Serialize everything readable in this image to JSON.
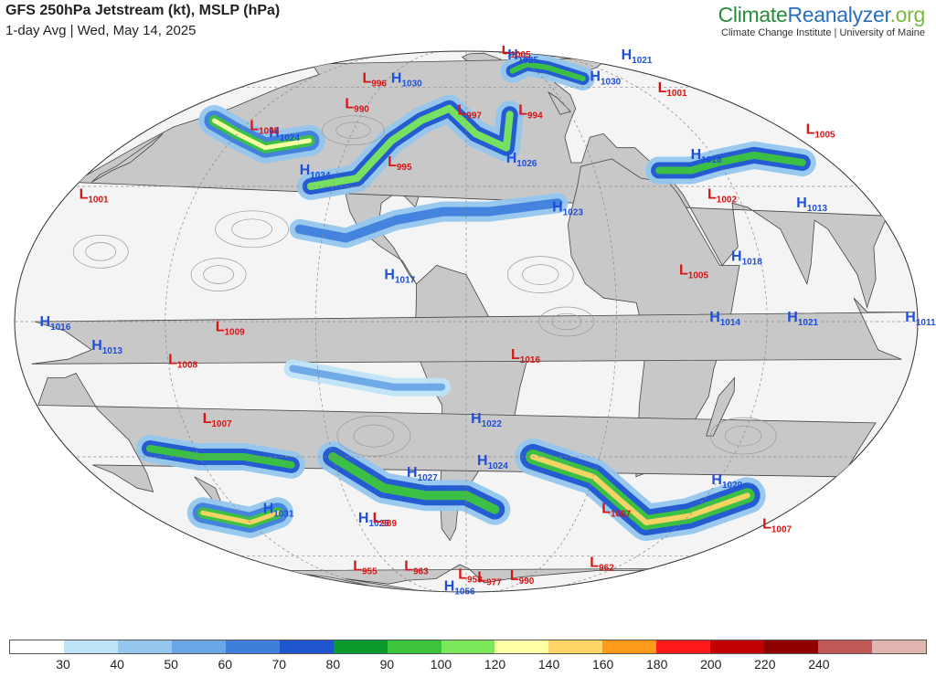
{
  "header": {
    "title": "GFS 250hPa Jetstream (kt), MSLP (hPa)",
    "subtitle": "1-day Avg | Wed, May 14, 2025"
  },
  "brand": {
    "name_part1": "Climate",
    "name_part2": "Reanalyzer",
    "name_part3": ".org",
    "tagline": "Climate Change Institute | University of Maine"
  },
  "colors": {
    "high": "#1f4fd6",
    "low": "#d81414",
    "neutral": "#2a8a7a",
    "land": "#c8c8c8",
    "ocean": "#f4f4f4"
  },
  "colorbar": {
    "colors": [
      "#ffffff",
      "#bfe3f7",
      "#94c6ee",
      "#6aa6e6",
      "#3f7fdc",
      "#1f56cf",
      "#0a9a2c",
      "#3cc43c",
      "#7ae85a",
      "#ffffa8",
      "#ffd466",
      "#ff9a1a",
      "#ff1a1a",
      "#c00000",
      "#8e0000",
      "#c05858",
      "#e0b4b0"
    ],
    "ticks": [
      "30",
      "40",
      "50",
      "60",
      "70",
      "80",
      "90",
      "100",
      "120",
      "140",
      "160",
      "180",
      "200",
      "220",
      "240"
    ]
  },
  "pressure_systems": [
    {
      "type": "H",
      "value": "1025",
      "lon": -12,
      "lat": 76
    },
    {
      "type": "H",
      "value": "1021",
      "lon": 120,
      "lat": 76
    },
    {
      "type": "H",
      "value": "1030",
      "lon": -115,
      "lat": 62
    },
    {
      "type": "H",
      "value": "1030",
      "lon": 33,
      "lat": 63
    },
    {
      "type": "H",
      "value": "1024",
      "lon": -162,
      "lat": 43
    },
    {
      "type": "H",
      "value": "1034",
      "lon": -137,
      "lat": 33
    },
    {
      "type": "H",
      "value": "1026",
      "lon": -41,
      "lat": 36
    },
    {
      "type": "H",
      "value": "1023",
      "lon": -23,
      "lat": 24
    },
    {
      "type": "H",
      "value": "1018",
      "lon": 48,
      "lat": 37
    },
    {
      "type": "H",
      "value": "1013",
      "lon": 83,
      "lat": 25
    },
    {
      "type": "H",
      "value": "1018",
      "lon": 48,
      "lat": 13
    },
    {
      "type": "H",
      "value": "1017",
      "lon": -93,
      "lat": 9
    },
    {
      "type": "H",
      "value": "1011",
      "lon": 115,
      "lat": 0
    },
    {
      "type": "H",
      "value": "1021",
      "lon": 68,
      "lat": 0
    },
    {
      "type": "H",
      "value": "1014",
      "lon": 37,
      "lat": 0
    },
    {
      "type": "H",
      "value": "1016",
      "lon": 130,
      "lat": -1
    },
    {
      "type": "H",
      "value": "1013",
      "lon": 150,
      "lat": -6
    },
    {
      "type": "H",
      "value": "1022",
      "lon": -58,
      "lat": -22
    },
    {
      "type": "H",
      "value": "1024",
      "lon": -55,
      "lat": -32
    },
    {
      "type": "H",
      "value": "1027",
      "lon": -88,
      "lat": -35
    },
    {
      "type": "H",
      "value": "1029",
      "lon": 58,
      "lat": -37
    },
    {
      "type": "H",
      "value": "1031",
      "lon": -168,
      "lat": -45
    },
    {
      "type": "H",
      "value": "1025",
      "lon": -120,
      "lat": -48
    },
    {
      "type": "H",
      "value": "1056",
      "lon": -100,
      "lat": -84
    },
    {
      "type": "L",
      "value": "1005",
      "lon": -4,
      "lat": 82
    },
    {
      "type": "L",
      "value": "996",
      "lon": -136,
      "lat": 62
    },
    {
      "type": "L",
      "value": "990",
      "lon": -132,
      "lat": 52
    },
    {
      "type": "L",
      "value": "997",
      "lon": -65,
      "lat": 50
    },
    {
      "type": "L",
      "value": "994",
      "lon": -30,
      "lat": 50
    },
    {
      "type": "L",
      "value": "1001",
      "lon": 68,
      "lat": 58
    },
    {
      "type": "L",
      "value": "1005",
      "lon": -175,
      "lat": 45
    },
    {
      "type": "L",
      "value": "1005",
      "lon": 118,
      "lat": 44
    },
    {
      "type": "L",
      "value": "995",
      "lon": -97,
      "lat": 35
    },
    {
      "type": "L",
      "value": "1002",
      "lon": 46,
      "lat": 27
    },
    {
      "type": "L",
      "value": "1001",
      "lon": 130,
      "lat": 27
    },
    {
      "type": "L",
      "value": "1005",
      "lon": 26,
      "lat": 10
    },
    {
      "type": "L",
      "value": "1009",
      "lon": -160,
      "lat": -2
    },
    {
      "type": "L",
      "value": "1008",
      "lon": -180,
      "lat": -9
    },
    {
      "type": "L",
      "value": "1007",
      "lon": -172,
      "lat": -22
    },
    {
      "type": "L",
      "value": "1016",
      "lon": -42,
      "lat": -8
    },
    {
      "type": "L",
      "value": "989",
      "lon": -112,
      "lat": -48
    },
    {
      "type": "L",
      "value": "1007",
      "lon": 12,
      "lat": -45
    },
    {
      "type": "L",
      "value": "1007",
      "lon": 110,
      "lat": -50
    },
    {
      "type": "L",
      "value": "955",
      "lon": -155,
      "lat": -67
    },
    {
      "type": "L",
      "value": "963",
      "lon": -112,
      "lat": -67
    },
    {
      "type": "L",
      "value": "958",
      "lon": -68,
      "lat": -72
    },
    {
      "type": "L",
      "value": "977",
      "lon": -48,
      "lat": -74
    },
    {
      "type": "L",
      "value": "990",
      "lon": -15,
      "lat": -73
    },
    {
      "type": "L",
      "value": "962",
      "lon": 38,
      "lat": -65
    }
  ]
}
